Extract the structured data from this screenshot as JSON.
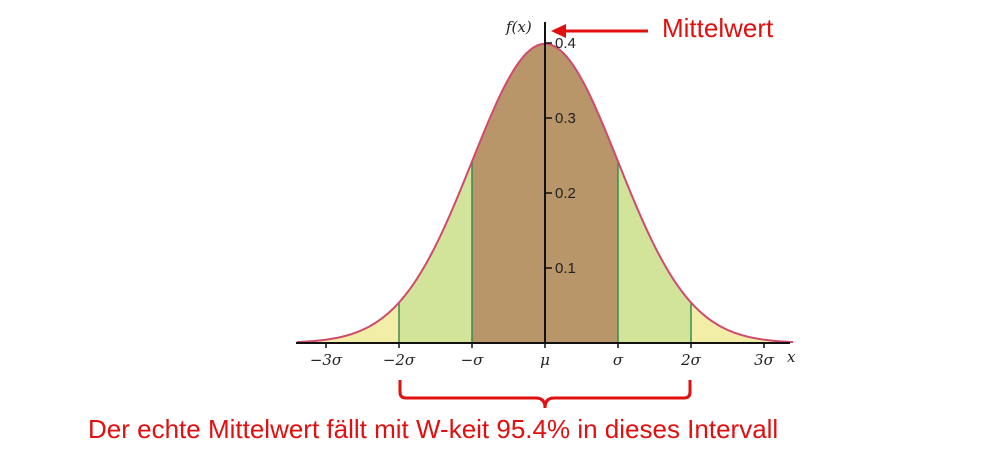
{
  "chart_data": {
    "type": "area",
    "ylabel": "f(x)",
    "xlabel": "x",
    "x_ticks": [
      "−3σ",
      "−2σ",
      "−σ",
      "μ",
      "σ",
      "2σ",
      "3σ"
    ],
    "y_ticks": [
      "0.1",
      "0.2",
      "0.3",
      "0.4"
    ],
    "ylim": [
      0,
      0.4
    ],
    "xlim": [
      -3.4,
      3.4
    ],
    "curve": "standard normal density f(x)",
    "regions": [
      {
        "range": [
          -1,
          1
        ],
        "color": "#b8966a"
      },
      {
        "range": [
          -2,
          2
        ],
        "color": "#d2e39a"
      },
      {
        "range": [
          -3.4,
          3.4
        ],
        "color": "#f2eea8"
      }
    ],
    "curve_color": "#d04a6e",
    "divider_color": "#3e8a52"
  },
  "annotations": {
    "mean_label": "Mittelwert",
    "interval_label": "Der echte Mittelwert fällt mit W-keit 95.4% in dieses Intervall",
    "color": "#e01010"
  }
}
